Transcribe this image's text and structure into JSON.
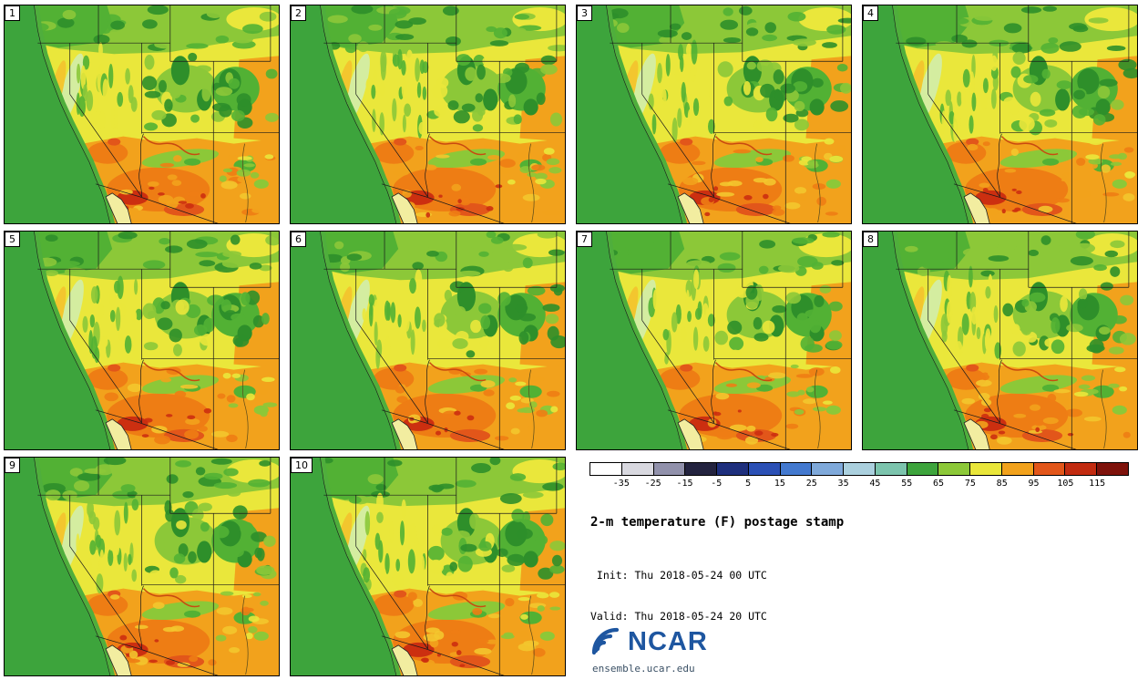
{
  "title": "2-m temperature (F) postage stamp",
  "init_line": " Init: Thu 2018-05-24 00 UTC",
  "valid_line": "Valid: Thu 2018-05-24 20 UTC",
  "footer": {
    "logo_text": "NCAR",
    "site": "ensemble.ucar.edu"
  },
  "panels": [
    {
      "label": "1"
    },
    {
      "label": "2"
    },
    {
      "label": "3"
    },
    {
      "label": "4"
    },
    {
      "label": "5"
    },
    {
      "label": "6"
    },
    {
      "label": "7"
    },
    {
      "label": "8"
    },
    {
      "label": "9"
    },
    {
      "label": "10"
    }
  ],
  "colorbar": {
    "ticks": [
      "-35",
      "-25",
      "-15",
      "-5",
      "5",
      "15",
      "25",
      "35",
      "45",
      "55",
      "65",
      "75",
      "85",
      "95",
      "105",
      "115"
    ],
    "colors": [
      "#ffffff",
      "#d9d9e0",
      "#9191ab",
      "#23233f",
      "#1e2f7d",
      "#2b50b5",
      "#4379cf",
      "#7fa9da",
      "#abd0de",
      "#7cc4ad",
      "#3da43c",
      "#8cc838",
      "#e9e63a",
      "#f2a21c",
      "#e2561a",
      "#c22b10",
      "#7e120b"
    ]
  },
  "map_palette": {
    "ocean": "#3da43c",
    "coast_green": "#4fae3c",
    "land_yellow": "#eae73b",
    "yellow_green": "#8cc838",
    "green": "#52b134",
    "dark_green": "#2e8f2a",
    "pale_sierra": "#d4eda0",
    "valley_orange": "#f3c62e",
    "orange": "#f2a21c",
    "deep_orange": "#ee7d14",
    "red_orange": "#e2561a",
    "red": "#cc2f10",
    "pale_gulf": "#f2eda0",
    "border": "#1a1a1a",
    "logo_blue": "#1e56a0"
  },
  "chart_data": {
    "type": "heatmap",
    "title": "2-m temperature (F) postage stamp",
    "variable": "2-m temperature",
    "units": "F",
    "init_time": "Thu 2018-05-24 00 UTC",
    "valid_time": "Thu 2018-05-24 20 UTC",
    "ensemble_members": [
      "1",
      "2",
      "3",
      "4",
      "5",
      "6",
      "7",
      "8",
      "9",
      "10"
    ],
    "panel_grid": {
      "columns": 4,
      "rows": 3,
      "panel_count": 10
    },
    "colorbar_ticks": [
      -35,
      -25,
      -15,
      -5,
      5,
      15,
      25,
      35,
      45,
      55,
      65,
      75,
      85,
      95,
      105,
      115
    ],
    "colorbar_colors": [
      "#ffffff",
      "#d9d9e0",
      "#9191ab",
      "#23233f",
      "#1e2f7d",
      "#2b50b5",
      "#4379cf",
      "#7fa9da",
      "#abd0de",
      "#7cc4ad",
      "#3da43c",
      "#8cc838",
      "#e9e63a",
      "#f2a21c",
      "#e2561a",
      "#c22b10",
      "#7e120b"
    ],
    "legend_position": "bottom-right"
  }
}
